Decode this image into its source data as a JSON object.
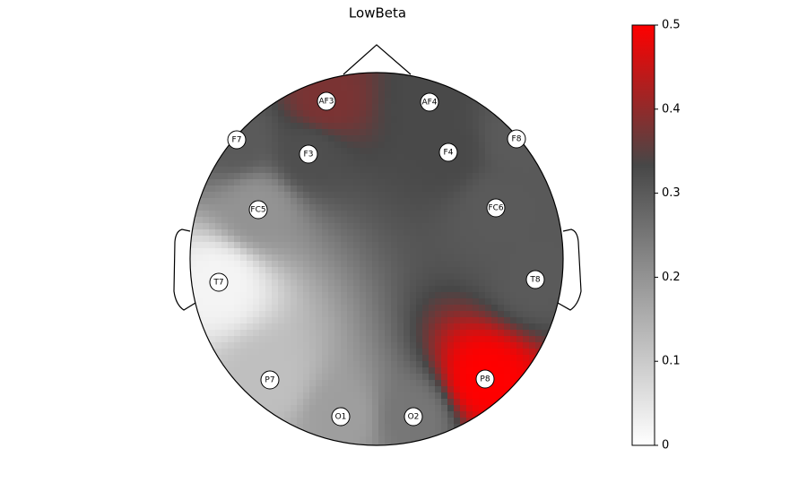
{
  "chart_data": {
    "type": "topomap",
    "title": "LowBeta",
    "categories": [
      "AF3",
      "AF4",
      "F7",
      "F8",
      "F3",
      "F4",
      "FC5",
      "FC6",
      "T7",
      "T8",
      "P7",
      "P8",
      "O1",
      "O2"
    ],
    "values": [
      0.38,
      0.33,
      0.3,
      0.3,
      0.32,
      0.33,
      0.2,
      0.3,
      0.02,
      0.3,
      0.12,
      0.5,
      0.18,
      0.25
    ],
    "colormap": [
      "#ffffff",
      "#a6a6a6",
      "#474747",
      "#ff0000"
    ],
    "ylim": [
      0,
      0.5
    ],
    "yticks": [
      0,
      0.1,
      0.2,
      0.3,
      0.4,
      0.5
    ]
  }
}
